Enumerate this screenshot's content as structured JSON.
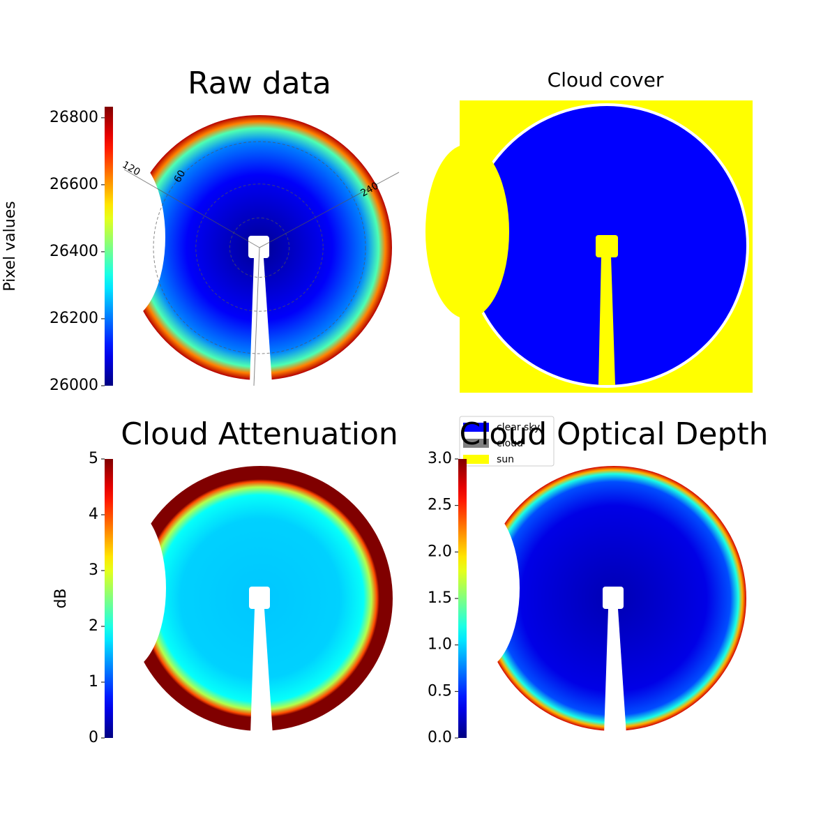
{
  "chart_data": [
    {
      "type": "image",
      "title": "Raw data",
      "colorbar_label": "Pixel values",
      "colormap": "jet",
      "ylim": [
        26000,
        26833
      ],
      "yticks": [
        26000,
        26200,
        26400,
        26600,
        26800
      ],
      "annotations": [
        "120",
        "60",
        "240"
      ]
    },
    {
      "type": "classes",
      "title": "Cloud cover",
      "legend": [
        {
          "name": "clear sky",
          "color": "#0000ff"
        },
        {
          "name": "cloud",
          "color": "#808080"
        },
        {
          "name": "sun",
          "color": "#ffff00"
        }
      ]
    },
    {
      "type": "image",
      "title": "Cloud Attenuation",
      "colorbar_label": "dB",
      "colormap": "jet",
      "ylim": [
        0,
        5
      ],
      "yticks": [
        0,
        1,
        2,
        3,
        4,
        5
      ]
    },
    {
      "type": "image",
      "title": "Cloud Optical Depth",
      "colormap": "jet",
      "ylim": [
        0,
        3
      ],
      "yticks": [
        {
          "value": 0,
          "label": "0.0"
        },
        0.5,
        {
          "value": 1,
          "label": "1.0"
        },
        1.5,
        {
          "value": 2,
          "label": "2.0"
        },
        2.5,
        {
          "value": 3,
          "label": "3.0"
        }
      ]
    }
  ]
}
